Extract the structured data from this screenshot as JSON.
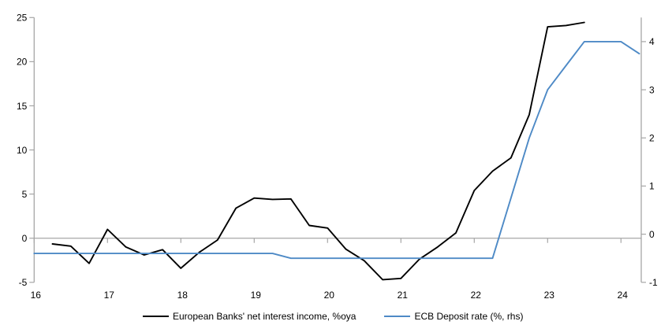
{
  "chart_data": {
    "type": "line",
    "title": "",
    "x_axis": {
      "ticks": [
        16,
        17,
        18,
        19,
        20,
        21,
        22,
        23,
        24
      ],
      "range": [
        16,
        24.3
      ],
      "grid": false
    },
    "left_axis": {
      "ticks": [
        -5,
        0,
        5,
        10,
        15,
        20,
        25
      ],
      "range": [
        -5,
        25
      ],
      "zero_line": true
    },
    "right_axis": {
      "ticks": [
        -1,
        0,
        1,
        2,
        3,
        4
      ],
      "range": [
        -1,
        4.5
      ]
    },
    "legend_position": "bottom",
    "series": [
      {
        "name": "European Banks' net interest income, %oya",
        "axis": "left",
        "color": "#000000",
        "points": [
          [
            16.25,
            -0.65
          ],
          [
            16.5,
            -0.9
          ],
          [
            16.75,
            -2.85
          ],
          [
            17.0,
            1.0
          ],
          [
            17.25,
            -1.0
          ],
          [
            17.5,
            -1.9
          ],
          [
            17.75,
            -1.3
          ],
          [
            18.0,
            -3.4
          ],
          [
            18.25,
            -1.6
          ],
          [
            18.5,
            -0.2
          ],
          [
            18.75,
            3.4
          ],
          [
            19.0,
            4.55
          ],
          [
            19.25,
            4.4
          ],
          [
            19.5,
            4.45
          ],
          [
            19.75,
            1.45
          ],
          [
            20.0,
            1.15
          ],
          [
            20.25,
            -1.25
          ],
          [
            20.5,
            -2.55
          ],
          [
            20.75,
            -4.7
          ],
          [
            21.0,
            -4.55
          ],
          [
            21.25,
            -2.4
          ],
          [
            21.5,
            -1.0
          ],
          [
            21.75,
            0.6
          ],
          [
            22.0,
            5.4
          ],
          [
            22.25,
            7.6
          ],
          [
            22.5,
            9.1
          ],
          [
            22.75,
            14.0
          ],
          [
            23.0,
            23.95
          ],
          [
            23.25,
            24.1
          ],
          [
            23.5,
            24.45
          ]
        ]
      },
      {
        "name": "ECB Deposit rate (%, rhs)",
        "axis": "right",
        "color": "#4e8ac6",
        "points": [
          [
            16.0,
            -0.4
          ],
          [
            19.25,
            -0.4
          ],
          [
            19.5,
            -0.5
          ],
          [
            22.25,
            -0.5
          ],
          [
            22.5,
            0.75
          ],
          [
            22.75,
            2.0
          ],
          [
            23.0,
            3.0
          ],
          [
            23.25,
            3.5
          ],
          [
            23.5,
            4.0
          ],
          [
            24.0,
            4.0
          ],
          [
            24.25,
            3.75
          ]
        ]
      }
    ]
  },
  "colors": {
    "axis_gray": "#a6a6a6",
    "background": "#ffffff",
    "label_black": "#000000"
  }
}
